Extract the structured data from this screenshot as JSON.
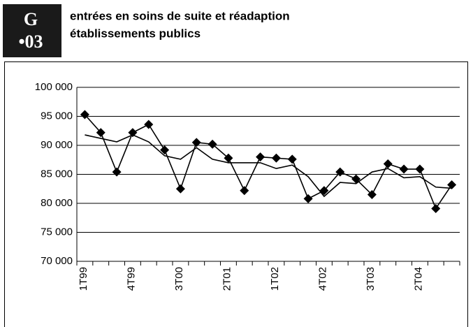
{
  "header": {
    "letter": "G",
    "number": "•03"
  },
  "chart_data": {
    "type": "line",
    "title": "entrées en soins de suite et réadaption",
    "subtitle": "établissements publics",
    "categories": [
      "1T99",
      null,
      null,
      "4T99",
      null,
      null,
      "3T00",
      null,
      null,
      "2T01",
      null,
      null,
      "1T02",
      null,
      null,
      "4T02",
      null,
      null,
      "3T03",
      null,
      null,
      "2T04",
      null,
      null
    ],
    "series": [
      {
        "color": "#000000",
        "marker": "diamond",
        "values": [
          95300,
          92200,
          85400,
          92200,
          93600,
          89200,
          82500,
          90500,
          90200,
          87800,
          82200,
          88000,
          87800,
          87600,
          80800,
          82200,
          85400,
          84200,
          81500,
          86800,
          85900,
          85900,
          79100,
          83200
        ]
      },
      {
        "color": "#000000",
        "values": [
          91800,
          91200,
          90600,
          91800,
          90600,
          88200,
          87600,
          89600,
          87600,
          87000,
          87000,
          87000,
          86000,
          86600,
          84600,
          81200,
          83600,
          83400,
          85400,
          86000,
          84400,
          84600,
          82800,
          82600
        ]
      }
    ],
    "ylim": [
      70000,
      100000
    ],
    "yticks": [
      {
        "value": 70000,
        "label": "70 000"
      },
      {
        "value": 75000,
        "label": "75 000"
      },
      {
        "value": 80000,
        "label": "80 000"
      },
      {
        "value": 85000,
        "label": "85 000"
      },
      {
        "value": 90000,
        "label": "90 000"
      },
      {
        "value": 95000,
        "label": "95 000"
      },
      {
        "value": 100000,
        "label": "100 000"
      }
    ],
    "grid": true
  }
}
